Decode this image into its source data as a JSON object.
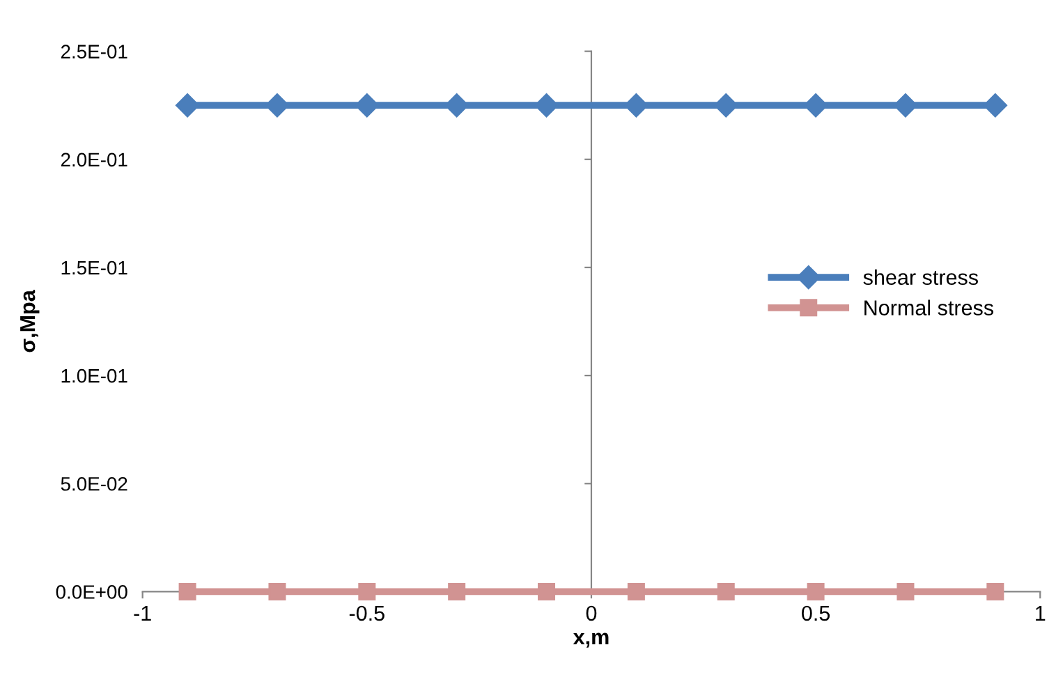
{
  "chart_data": {
    "type": "line",
    "xlabel": "x,m",
    "ylabel": "σ,Mpa",
    "x": [
      -0.9,
      -0.7,
      -0.5,
      -0.3,
      -0.1,
      0.1,
      0.3,
      0.5,
      0.7,
      0.9
    ],
    "series": [
      {
        "name": "shear stress",
        "color": "#4a7ebb",
        "marker": "diamond",
        "values": [
          0.225,
          0.225,
          0.225,
          0.225,
          0.225,
          0.225,
          0.225,
          0.225,
          0.225,
          0.225
        ]
      },
      {
        "name": "Normal stress",
        "color": "#d19392",
        "marker": "square",
        "values": [
          0,
          0,
          0,
          0,
          0,
          0,
          0,
          0,
          0,
          0
        ]
      }
    ],
    "xlim": [
      -1,
      1
    ],
    "xticks": [
      -1,
      -0.5,
      0,
      0.5,
      1
    ],
    "ylim": [
      0,
      0.25
    ],
    "yticks": [
      {
        "value": 0,
        "label": "0.0E+00"
      },
      {
        "value": 0.05,
        "label": "5.0E-02"
      },
      {
        "value": 0.1,
        "label": "1.0E-01"
      },
      {
        "value": 0.15,
        "label": "1.5E-01"
      },
      {
        "value": 0.2,
        "label": "2.0E-01"
      },
      {
        "value": 0.25,
        "label": "2.5E-01"
      }
    ],
    "legend": "right",
    "line_style": "solid"
  }
}
